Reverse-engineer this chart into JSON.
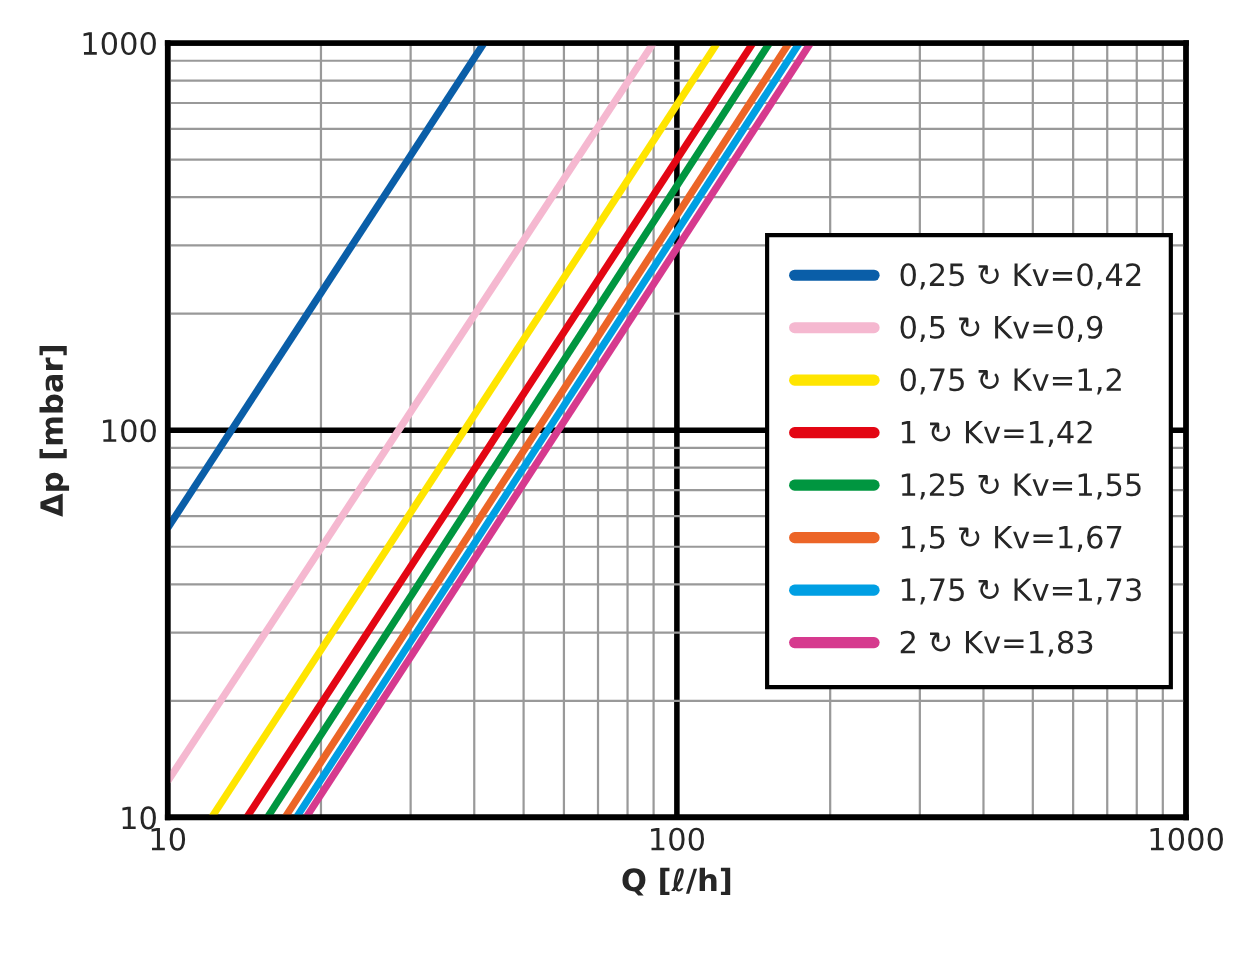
{
  "chart_data": {
    "type": "line",
    "xlabel": "Q [ℓ/h]",
    "ylabel": "Δp [mbar]",
    "log": "xy",
    "xlim": [
      10,
      1000
    ],
    "ylim": [
      10,
      1000
    ],
    "xticks": [
      10,
      100,
      1000
    ],
    "yticks": [
      10,
      100,
      1000
    ],
    "grid": true,
    "legend": "right",
    "marker": "none",
    "line_style": "solid",
    "series": [
      {
        "name": "0,25 ↻ Kv=0,42",
        "color": "#0a5ea8",
        "x": [
          10,
          41.8
        ],
        "values": [
          55.9,
          1000
        ]
      },
      {
        "name": "0,5 ↻ Kv=0,9",
        "color": "#f5b8d0",
        "x": [
          10,
          89.9
        ],
        "values": [
          12.4,
          1000
        ]
      },
      {
        "name": "0,75 ↻ Kv=1,2",
        "color": "#ffe500",
        "x": [
          12.2,
          120
        ],
        "values": [
          10,
          1000
        ]
      },
      {
        "name": "1 ↻ Kv=1,42",
        "color": "#e30613",
        "x": [
          14.3,
          141
        ],
        "values": [
          10,
          1000
        ]
      },
      {
        "name": "1,25 ↻ Kv=1,55",
        "color": "#009640",
        "x": [
          15.7,
          152
        ],
        "values": [
          10,
          1000
        ]
      },
      {
        "name": "1,5 ↻ Kv=1,67",
        "color": "#ec6527",
        "x": [
          17.0,
          166
        ],
        "values": [
          10,
          1000
        ]
      },
      {
        "name": "1,75 ↻ Kv=1,73",
        "color": "#009fe3",
        "x": [
          17.9,
          174
        ],
        "values": [
          10,
          1000
        ]
      },
      {
        "name": "2 ↻ Kv=1,83",
        "color": "#d63a8e",
        "x": [
          18.7,
          183
        ],
        "values": [
          10,
          1000
        ]
      }
    ]
  }
}
